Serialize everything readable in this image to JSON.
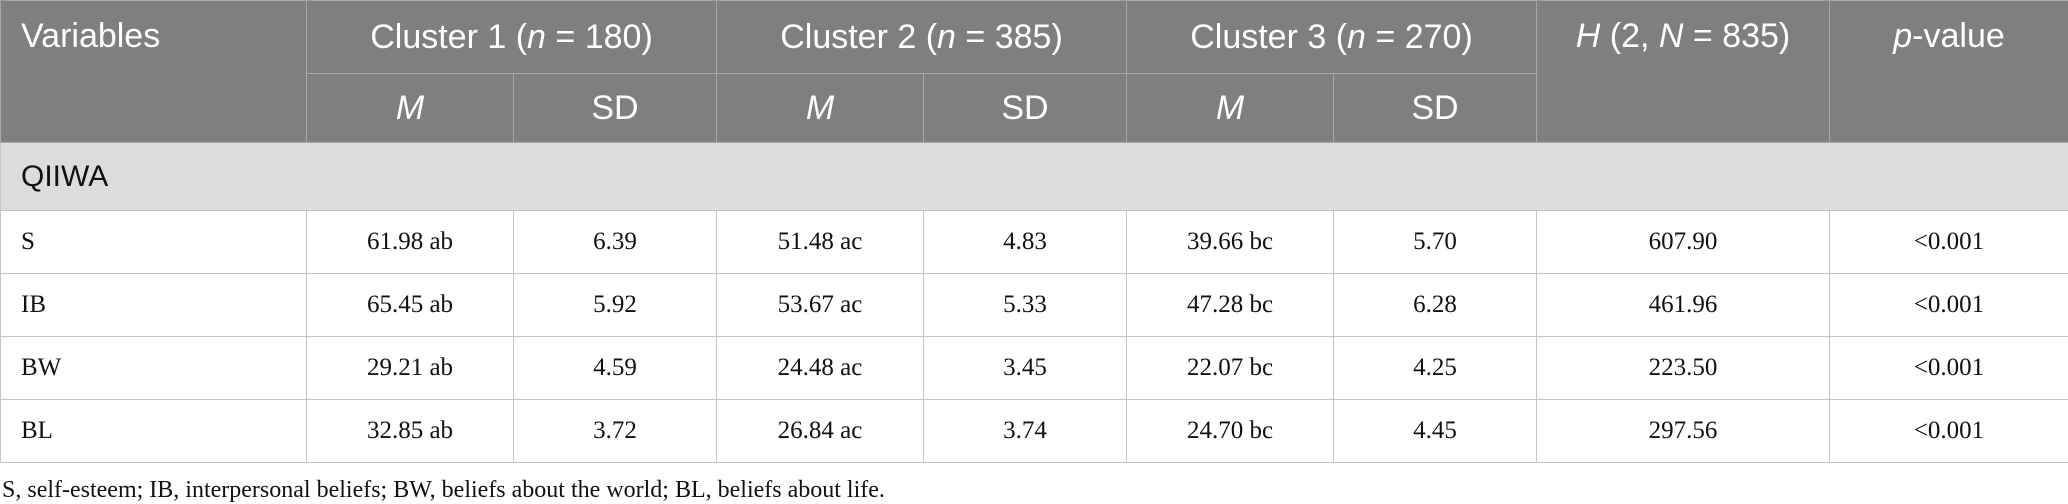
{
  "table": {
    "header": [
      [
        {
          "text": "Variables",
          "italic": false
        }
      ],
      [
        {
          "text": "Cluster 1 (",
          "italic": false
        },
        {
          "text": "n",
          "italic": true
        },
        {
          "text": " = 180)",
          "italic": false
        }
      ],
      [
        {
          "text": "Cluster 2 (",
          "italic": false
        },
        {
          "text": "n",
          "italic": true
        },
        {
          "text": " = 385)",
          "italic": false
        }
      ],
      [
        {
          "text": "Cluster 3 (",
          "italic": false
        },
        {
          "text": "n",
          "italic": true
        },
        {
          "text": " = 270)",
          "italic": false
        }
      ],
      [
        {
          "text": "H",
          "italic": true
        },
        {
          "text": " (2, ",
          "italic": false
        },
        {
          "text": "N",
          "italic": true
        },
        {
          "text": " = 835)",
          "italic": false
        }
      ],
      [
        {
          "text": "p",
          "italic": true
        },
        {
          "text": "-value",
          "italic": false
        }
      ]
    ],
    "subheader": [
      {
        "text": "M",
        "italic": true
      },
      {
        "text": "SD",
        "italic": false
      },
      {
        "text": "M",
        "italic": true
      },
      {
        "text": "SD",
        "italic": false
      },
      {
        "text": "M",
        "italic": true
      },
      {
        "text": "SD",
        "italic": false
      }
    ],
    "section": "QIIWA",
    "rows": [
      [
        "S",
        "61.98 ab",
        "6.39",
        "51.48 ac",
        "4.83",
        "39.66 bc",
        "5.70",
        "607.90",
        "<0.001"
      ],
      [
        "IB",
        "65.45 ab",
        "5.92",
        "53.67 ac",
        "5.33",
        "47.28 bc",
        "6.28",
        "461.96",
        "<0.001"
      ],
      [
        "BW",
        "29.21 ab",
        "4.59",
        "24.48 ac",
        "3.45",
        "22.07 bc",
        "4.25",
        "223.50",
        "<0.001"
      ],
      [
        "BL",
        "32.85 ab",
        "3.72",
        "26.84 ac",
        "3.74",
        "24.70 bc",
        "4.45",
        "297.56",
        "<0.001"
      ]
    ]
  },
  "footnote": "S, self-esteem; IB, interpersonal beliefs; BW, beliefs about the world; BL, beliefs about life."
}
